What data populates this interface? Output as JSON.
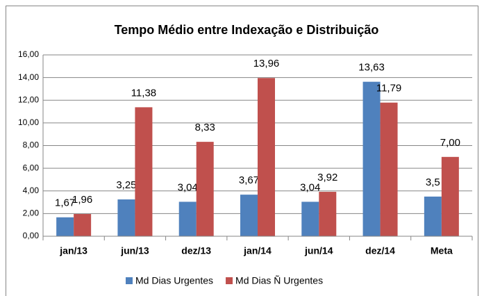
{
  "chart_data": {
    "type": "bar",
    "title": "Tempo Médio entre Indexação e Distribuição",
    "categories": [
      "jan/13",
      "jun/13",
      "dez/13",
      "jan/14",
      "jun/14",
      "dez/14",
      "Meta"
    ],
    "series": [
      {
        "name": "Md Dias Urgentes",
        "color": "#4f81bd",
        "values": [
          1.67,
          3.25,
          3.04,
          3.67,
          3.04,
          13.63,
          3.5
        ],
        "value_labels": [
          "1,67",
          "3,25",
          "3,04",
          "3,67",
          "3,04",
          "13,63",
          "3,5"
        ]
      },
      {
        "name": "Md Dias Ñ Urgentes",
        "color": "#c0504d",
        "values": [
          1.96,
          11.38,
          8.33,
          13.96,
          3.92,
          11.79,
          7.0
        ],
        "value_labels": [
          "1,96",
          "11,38",
          "8,33",
          "13,96",
          "3,92",
          "11,79",
          "7,00"
        ]
      }
    ],
    "ylim": [
      0,
      16
    ],
    "yticks": [
      {
        "value": 0,
        "label": "0,00"
      },
      {
        "value": 2,
        "label": "2,00"
      },
      {
        "value": 4,
        "label": "4,00"
      },
      {
        "value": 6,
        "label": "6,00"
      },
      {
        "value": 8,
        "label": "8,00"
      },
      {
        "value": 10,
        "label": "10,00"
      },
      {
        "value": 12,
        "label": "12,00"
      },
      {
        "value": 14,
        "label": "14,00"
      },
      {
        "value": 16,
        "label": "16,00"
      }
    ],
    "grid": true,
    "legend": "bottom"
  }
}
